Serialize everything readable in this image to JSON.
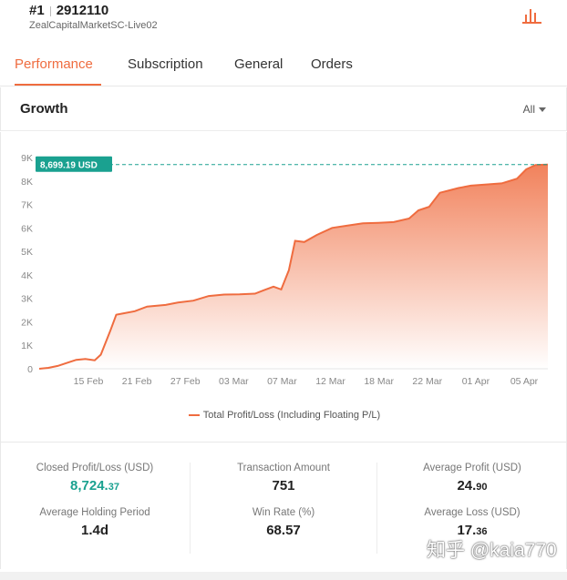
{
  "header": {
    "account_rank": "#1",
    "account_id": "2912110",
    "server": "ZealCapitalMarketSC-Live02",
    "icon": "bar-chart-icon"
  },
  "tabs": [
    {
      "label": "Performance",
      "active": true
    },
    {
      "label": "Subscription",
      "active": false
    },
    {
      "label": "General",
      "active": false
    },
    {
      "label": "Orders",
      "active": false
    }
  ],
  "growth": {
    "title": "Growth",
    "range": "All"
  },
  "colors": {
    "accent": "#ef6c3f",
    "highlight": "#1aa190"
  },
  "chart_data": {
    "type": "area",
    "x_ticks": [
      "15 Feb",
      "21 Feb",
      "27 Feb",
      "03 Mar",
      "07 Mar",
      "12 Mar",
      "18 Mar",
      "22 Mar",
      "01 Apr",
      "05 Apr"
    ],
    "y_ticks": [
      "0",
      "1K",
      "2K",
      "3K",
      "4K",
      "5K",
      "6K",
      "7K",
      "8K",
      "9K"
    ],
    "ylim": [
      0,
      9000
    ],
    "grid": false,
    "legend_placement": "bottom",
    "series": [
      {
        "name": "Total Profit/Loss (Including Floating P/L)",
        "points": [
          [
            0,
            0
          ],
          [
            0.6,
            40
          ],
          [
            1.2,
            120
          ],
          [
            1.8,
            250
          ],
          [
            2.4,
            380
          ],
          [
            3.0,
            420
          ],
          [
            3.6,
            360
          ],
          [
            4.0,
            600
          ],
          [
            4.6,
            1600
          ],
          [
            5.0,
            2300
          ],
          [
            5.4,
            2350
          ],
          [
            6.2,
            2450
          ],
          [
            7.0,
            2650
          ],
          [
            8.2,
            2720
          ],
          [
            9.0,
            2820
          ],
          [
            10.0,
            2900
          ],
          [
            11.0,
            3100
          ],
          [
            12.0,
            3160
          ],
          [
            13.0,
            3170
          ],
          [
            14.0,
            3200
          ],
          [
            14.6,
            3350
          ],
          [
            15.2,
            3500
          ],
          [
            15.7,
            3380
          ],
          [
            16.2,
            4200
          ],
          [
            16.6,
            5450
          ],
          [
            17.2,
            5400
          ],
          [
            18.0,
            5700
          ],
          [
            19.0,
            6000
          ],
          [
            20.0,
            6100
          ],
          [
            21.0,
            6200
          ],
          [
            22.0,
            6220
          ],
          [
            23.0,
            6250
          ],
          [
            24.0,
            6400
          ],
          [
            24.6,
            6750
          ],
          [
            25.3,
            6900
          ],
          [
            26.0,
            7500
          ],
          [
            26.6,
            7600
          ],
          [
            27.2,
            7700
          ],
          [
            28.0,
            7800
          ],
          [
            29.0,
            7850
          ],
          [
            30.0,
            7900
          ],
          [
            31.0,
            8100
          ],
          [
            31.6,
            8500
          ],
          [
            32.2,
            8680
          ],
          [
            33.0,
            8699.19
          ]
        ]
      }
    ],
    "current_value_label": "8,699.19 USD",
    "current_value": 8699.19
  },
  "stats": {
    "closed_pl": {
      "label": "Closed Profit/Loss (USD)",
      "value_int": "8,724.",
      "value_dec": "37"
    },
    "avg_holding": {
      "label": "Average Holding Period",
      "value": "1.4d"
    },
    "transaction_amount": {
      "label": "Transaction Amount",
      "value": "751"
    },
    "win_rate": {
      "label": "Win Rate (%)",
      "value": "68.57"
    },
    "avg_profit": {
      "label": "Average Profit (USD)",
      "value_int": "24.",
      "value_dec": "90"
    },
    "avg_loss": {
      "label": "Average Loss (USD)",
      "value_int": "17.",
      "value_dec": "36"
    }
  },
  "watermark": "知乎 @kaia770"
}
